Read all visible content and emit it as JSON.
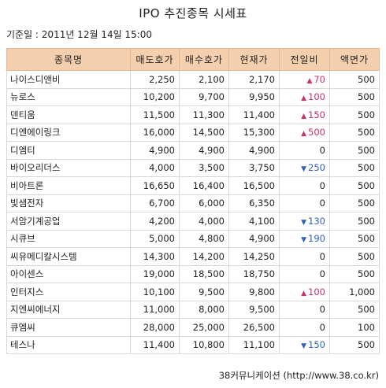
{
  "title": "IPO 추진종목 시세표",
  "base_date": "기준일 : 2011년 12월 14일 15:00",
  "headers": [
    "종목명",
    "매도호가",
    "매수호가",
    "현재가",
    "전일비",
    "액면가"
  ],
  "rows": [
    {
      "name": "나이스디앤비",
      "ask": "2,250",
      "bid": "2,100",
      "price": "2,170",
      "dir": "up",
      "change": "70",
      "par": "500"
    },
    {
      "name": "뉴로스",
      "ask": "10,200",
      "bid": "9,700",
      "price": "9,950",
      "dir": "up",
      "change": "100",
      "par": "500"
    },
    {
      "name": "덴티움",
      "ask": "11,500",
      "bid": "11,300",
      "price": "11,400",
      "dir": "up",
      "change": "150",
      "par": "500"
    },
    {
      "name": "디엔에이링크",
      "ask": "16,000",
      "bid": "14,500",
      "price": "15,300",
      "dir": "up",
      "change": "500",
      "par": "500"
    },
    {
      "name": "디엠티",
      "ask": "4,900",
      "bid": "4,900",
      "price": "4,900",
      "dir": "none",
      "change": "0",
      "par": "500"
    },
    {
      "name": "바이오리더스",
      "ask": "4,000",
      "bid": "3,500",
      "price": "3,750",
      "dir": "down",
      "change": "250",
      "par": "500"
    },
    {
      "name": "비아트론",
      "ask": "16,650",
      "bid": "16,400",
      "price": "16,500",
      "dir": "none",
      "change": "0",
      "par": "500"
    },
    {
      "name": "빛샘전자",
      "ask": "6,700",
      "bid": "6,000",
      "price": "6,350",
      "dir": "none",
      "change": "0",
      "par": "500"
    },
    {
      "name": "서암기계공업",
      "ask": "4,200",
      "bid": "4,000",
      "price": "4,100",
      "dir": "down",
      "change": "130",
      "par": "500"
    },
    {
      "name": "시큐브",
      "ask": "5,000",
      "bid": "4,800",
      "price": "4,900",
      "dir": "down",
      "change": "190",
      "par": "500"
    },
    {
      "name": "씨유메디칼시스템",
      "ask": "14,300",
      "bid": "14,200",
      "price": "14,250",
      "dir": "none",
      "change": "0",
      "par": "500"
    },
    {
      "name": "아이센스",
      "ask": "19,000",
      "bid": "18,500",
      "price": "18,750",
      "dir": "none",
      "change": "0",
      "par": "500"
    },
    {
      "name": "인터지스",
      "ask": "10,100",
      "bid": "9,500",
      "price": "9,800",
      "dir": "up",
      "change": "100",
      "par": "1,000"
    },
    {
      "name": "지엔씨에너지",
      "ask": "11,000",
      "bid": "8,000",
      "price": "9,500",
      "dir": "none",
      "change": "0",
      "par": "500"
    },
    {
      "name": "큐엠씨",
      "ask": "28,000",
      "bid": "25,000",
      "price": "26,500",
      "dir": "none",
      "change": "0",
      "par": "100"
    },
    {
      "name": "테스나",
      "ask": "11,400",
      "bid": "10,800",
      "price": "11,100",
      "dir": "down",
      "change": "150",
      "par": "500"
    }
  ],
  "arrows": {
    "up": "▲",
    "down": "▼"
  },
  "source": "38커뮤니케이션 (http://www.38.co.kr)"
}
